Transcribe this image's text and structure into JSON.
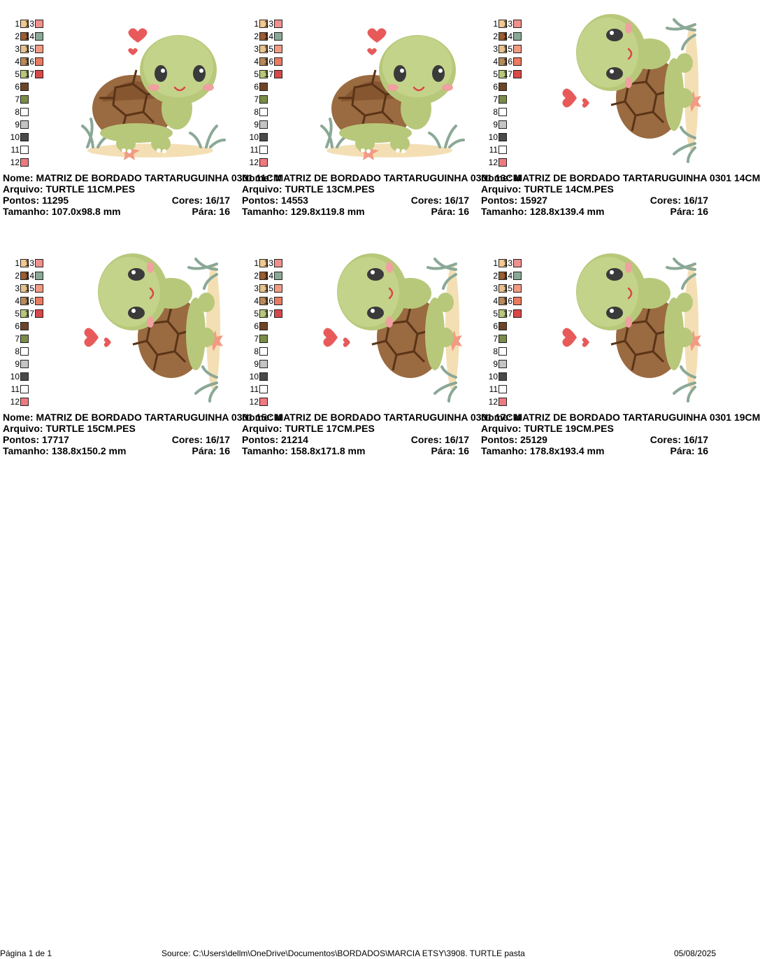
{
  "palette": {
    "colors": [
      {
        "num": "1",
        "hex": "#f2c890"
      },
      {
        "num": "2",
        "hex": "#9a5e32"
      },
      {
        "num": "3",
        "hex": "#e8c28c"
      },
      {
        "num": "4",
        "hex": "#b88a5a"
      },
      {
        "num": "5",
        "hex": "#b8c87a"
      },
      {
        "num": "6",
        "hex": "#6e4426"
      },
      {
        "num": "7",
        "hex": "#7a8c48"
      },
      {
        "num": "8",
        "hex": "#ffffff"
      },
      {
        "num": "9",
        "hex": "#c4c4c4"
      },
      {
        "num": "10",
        "hex": "#4a4a4a"
      },
      {
        "num": "11",
        "hex": "#ffffff"
      },
      {
        "num": "12",
        "hex": "#ee7a80"
      },
      {
        "num": "13",
        "hex": "#f0908c"
      },
      {
        "num": "14",
        "hex": "#8aa896"
      },
      {
        "num": "15",
        "hex": "#f29a84"
      },
      {
        "num": "16",
        "hex": "#ea7a60"
      },
      {
        "num": "17",
        "hex": "#d84848"
      }
    ]
  },
  "labels": {
    "nome": "Nome:",
    "arquivo": "Arquivo:",
    "pontos": "Pontos:",
    "cores": "Cores:",
    "tamanho": "Tamanho:",
    "para": "Pára:"
  },
  "designs": [
    {
      "nome": "MATRIZ DE BORDADO TARTARUGUINHA 0301 11CM",
      "arquivo": "TURTLE 11CM.PES",
      "pontos": "11295",
      "cores": "16/17",
      "tamanho": "107.0x98.8 mm",
      "para": "16",
      "orientation": "upright"
    },
    {
      "nome": "MATRIZ DE BORDADO TARTARUGUINHA 0301 13CM",
      "arquivo": "TURTLE 13CM.PES",
      "pontos": "14553",
      "cores": "16/17",
      "tamanho": "129.8x119.8 mm",
      "para": "16",
      "orientation": "upright"
    },
    {
      "nome": "MATRIZ DE BORDADO TARTARUGUINHA 0301 14CM",
      "arquivo": "TURTLE 14CM.PES",
      "pontos": "15927",
      "cores": "16/17",
      "tamanho": "128.8x139.4 mm",
      "para": "16",
      "orientation": "rotated"
    },
    {
      "nome": "MATRIZ DE BORDADO TARTARUGUINHA 0301 15CM",
      "arquivo": "TURTLE 15CM.PES",
      "pontos": "17717",
      "cores": "16/17",
      "tamanho": "138.8x150.2 mm",
      "para": "16",
      "orientation": "rotated"
    },
    {
      "nome": "MATRIZ DE BORDADO TARTARUGUINHA 0301 17CM",
      "arquivo": "TURTLE 17CM.PES",
      "pontos": "21214",
      "cores": "16/17",
      "tamanho": "158.8x171.8 mm",
      "para": "16",
      "orientation": "rotated"
    },
    {
      "nome": "MATRIZ DE BORDADO TARTARUGUINHA 0301 19CM",
      "arquivo": "TURTLE 19CM.PES",
      "pontos": "25129",
      "cores": "16/17",
      "tamanho": "178.8x193.4 mm",
      "para": "16",
      "orientation": "rotated"
    }
  ],
  "footer": {
    "page": "Página 1 de 1",
    "source": "Source: C:\\Users\\dellm\\OneDrive\\Documentos\\BORDADOS\\MARCIA ETSY\\3908. TURTLE pasta",
    "date": "05/08/2025"
  }
}
